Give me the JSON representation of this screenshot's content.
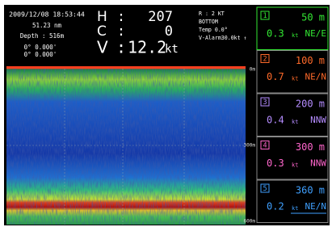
{
  "status": {
    "datetime": "2009/12/08 18:53:44",
    "distance": "51.23 nm",
    "depth": "Depth : 516m",
    "lat": "0° 0.000'",
    "lon": "0° 0.000'"
  },
  "nav": [
    {
      "label": "H",
      "sep": ":",
      "value": "207"
    },
    {
      "label": "C",
      "sep": ":",
      "value": "0"
    },
    {
      "label": "V",
      "sep": ":",
      "value": "12.2",
      "unit": "kt"
    }
  ],
  "settings": [
    "R : 2 KT",
    "BOTTOM",
    "Temp  0.0°",
    "V-Alarm30.0kt ↑"
  ],
  "layers": [
    {
      "index": "1",
      "depth": "50 m",
      "speed": "0.3",
      "unit": "kt",
      "direction": "NE/E",
      "color": "#33e833"
    },
    {
      "index": "2",
      "depth": "100 m",
      "speed": "0.7",
      "unit": "kt",
      "direction": "NE/N",
      "color": "#ff6a2a"
    },
    {
      "index": "3",
      "depth": "200 m",
      "speed": "0.4",
      "unit": "kt",
      "direction": "NNW",
      "color": "#b58cff"
    },
    {
      "index": "4",
      "depth": "300 m",
      "speed": "0.3",
      "unit": "kt",
      "direction": "NNW",
      "color": "#ff66cc"
    },
    {
      "index": "5",
      "depth": "360 m",
      "speed": "0.2",
      "unit": "kt",
      "direction": "NE/N",
      "color": "#3fa0ff"
    }
  ],
  "echogram": {
    "depth_labels": [
      "0m",
      "300m",
      "600m"
    ]
  }
}
